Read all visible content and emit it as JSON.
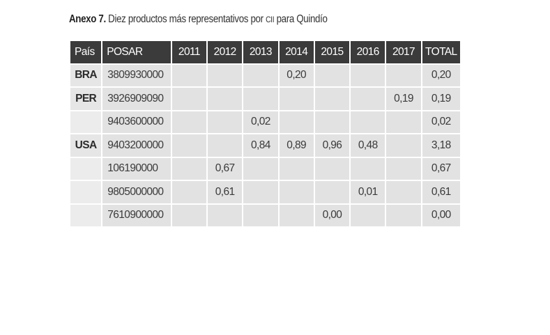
{
  "caption": {
    "lead": "Anexo 7.",
    "text_before": " Diez productos más representativos por ",
    "small_caps": "CII",
    "text_after": " para Quindío"
  },
  "table": {
    "headers": [
      "País",
      "POSAR",
      "2011",
      "2012",
      "2013",
      "2014",
      "2015",
      "2016",
      "2017",
      "TOTAL"
    ],
    "rows": [
      {
        "country": "BRA",
        "code": "3809930000",
        "values": [
          "",
          "",
          "",
          "0,20",
          "",
          "",
          ""
        ],
        "total": "0,20"
      },
      {
        "country": "PER",
        "code": "3926909090",
        "values": [
          "",
          "",
          "",
          "",
          "",
          "",
          "0,19"
        ],
        "total": "0,19"
      },
      {
        "country": "",
        "code": "9403600000",
        "values": [
          "",
          "",
          "0,02",
          "",
          "",
          "",
          ""
        ],
        "total": "0,02"
      },
      {
        "country": "USA",
        "code": "9403200000",
        "values": [
          "",
          "",
          "0,84",
          "0,89",
          "0,96",
          "0,48",
          ""
        ],
        "total": "3,18"
      },
      {
        "country": "",
        "code": "106190000",
        "values": [
          "",
          "0,67",
          "",
          "",
          "",
          "",
          ""
        ],
        "total": "0,67"
      },
      {
        "country": "",
        "code": "9805000000",
        "values": [
          "",
          "0,61",
          "",
          "",
          "",
          "0,01",
          ""
        ],
        "total": "0,61"
      },
      {
        "country": "",
        "code": "7610900000",
        "values": [
          "",
          "",
          "",
          "",
          "0,00",
          "",
          ""
        ],
        "total": "0,00"
      }
    ]
  }
}
